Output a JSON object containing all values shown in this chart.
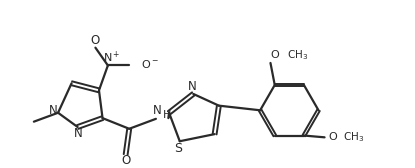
{
  "bg_color": "#ffffff",
  "line_color": "#2a2a2a",
  "line_width": 1.6,
  "figsize": [
    4.15,
    1.68
  ],
  "dpi": 100,
  "xlim": [
    0,
    11
  ],
  "ylim": [
    0,
    4.5
  ]
}
